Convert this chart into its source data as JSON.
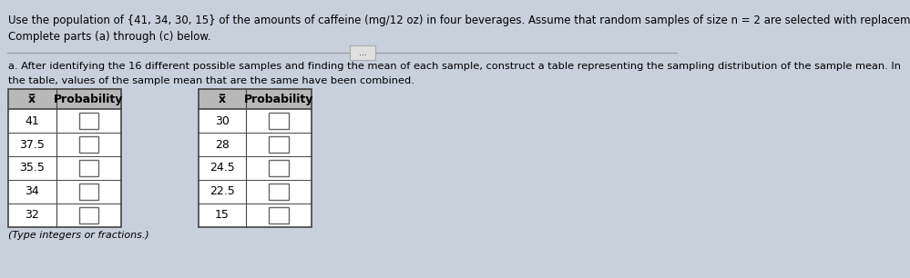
{
  "title_line1": "Use the population of {41, 34, 30, 15} of the amounts of caffeine (mg/12 oz) in four beverages. Assume that random samples of size n = 2 are selected with replacement.",
  "title_line2": "Complete parts (a) through (c) below.",
  "part_a_text_line1": "a. After identifying the 16 different possible samples and finding the mean of each sample, construct a table representing the sampling distribution of the sample mean. In",
  "part_a_text_line2": "the table, values of the sample mean that are the same have been combined.",
  "note": "(Type integers or fractions.)",
  "ellipsis_text": "...",
  "left_table": {
    "headers": [
      "x̅",
      "Probability"
    ],
    "rows": [
      "41",
      "37.5",
      "35.5",
      "34",
      "32"
    ]
  },
  "right_table": {
    "headers": [
      "x̅",
      "Probability"
    ],
    "rows": [
      "30",
      "28",
      "24.5",
      "22.5",
      "15"
    ]
  },
  "bg_color": "#c8d0dc",
  "table_bg": "#ffffff",
  "header_bg": "#b8b8b8",
  "text_color": "#000000",
  "border_color": "#444444",
  "input_box_color": "#ffffff",
  "input_box_border": "#666666",
  "font_size_title": 8.5,
  "font_size_body": 8.2,
  "font_size_table": 9.0
}
